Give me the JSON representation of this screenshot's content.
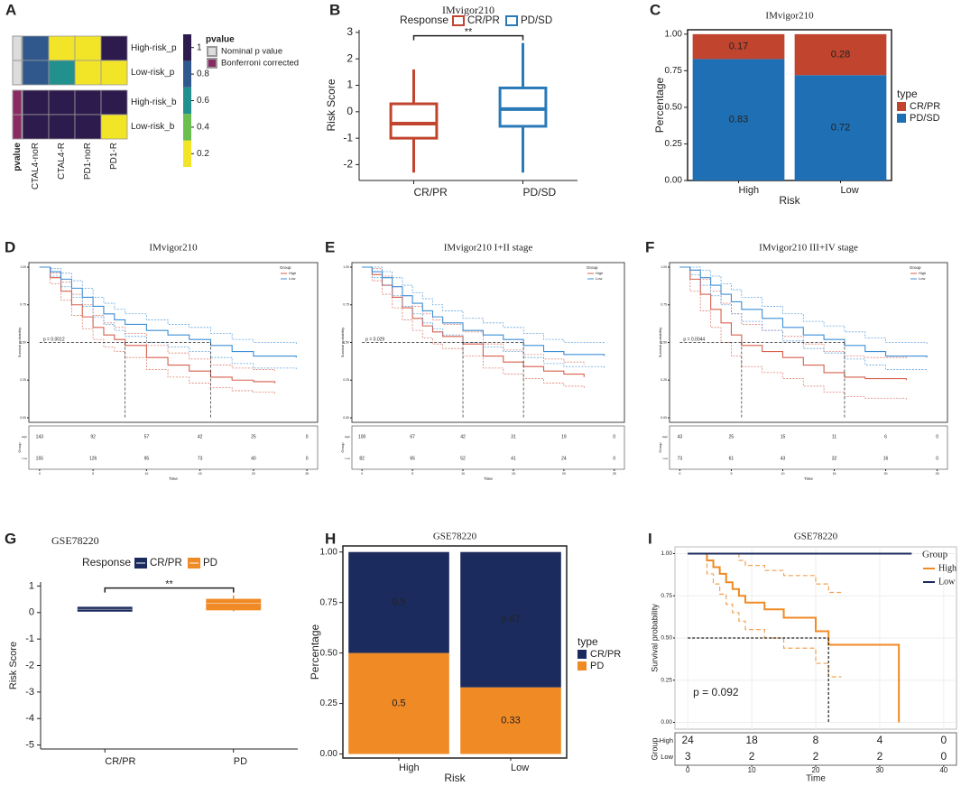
{
  "chart_data": [
    {
      "type": "heatmap",
      "panel_label": "A",
      "rows": [
        "High-risk_p",
        "Low-risk_p",
        "High-risk_b",
        "Low-risk_b"
      ],
      "columns": [
        "CTAL4-noR",
        "CTAL4-R",
        "PD1-noR",
        "PD1-R"
      ],
      "values": [
        [
          0.8,
          0.2,
          0.2,
          1
        ],
        [
          0.8,
          0.6,
          0.2,
          0.2
        ],
        [
          1,
          1,
          1,
          1
        ],
        [
          1,
          1,
          1,
          0.2
        ]
      ],
      "annotation_label": "pvalue",
      "row_annotation_colors": [
        "#dcdcdc",
        "#dcdcdc",
        "#8a2a63",
        "#8a2a63"
      ],
      "colors": [
        "#f2e427",
        "#6cbf4f",
        "#22908c",
        "#31588c",
        "#2e1b4e"
      ],
      "clim": [
        0.1,
        1.1
      ],
      "colorbar_ticks": [
        0.2,
        0.4,
        0.6,
        0.8,
        1
      ],
      "legend_title": "pvalue",
      "legend": [
        {
          "name": "Nominal p value",
          "color": "#dcdcdc"
        },
        {
          "name": "Bonferroni corrected",
          "color": "#8a2a63"
        }
      ]
    },
    {
      "type": "box",
      "panel_label": "B",
      "title": "IMvigor210",
      "legend_title": "Response",
      "ylabel": "Risk Score",
      "categories": [
        "CR/PR",
        "PD/SD"
      ],
      "fill": false,
      "series": [
        {
          "name": "CR/PR",
          "color": "#c0442e",
          "stats": {
            "min": -2.3,
            "q1": -1,
            "median": -0.45,
            "q3": 0.3,
            "max": 1.6
          }
        },
        {
          "name": "PD/SD",
          "color": "#2a7ab8",
          "stats": {
            "min": -2.3,
            "q1": -0.55,
            "median": 0.1,
            "q3": 0.9,
            "max": 2.6
          }
        }
      ],
      "ylim": [
        -2.6,
        3.1
      ],
      "yticks": [
        -2,
        -1,
        0,
        1,
        2,
        3
      ],
      "annotation": "**"
    },
    {
      "type": "stacked_bar",
      "panel_label": "C",
      "title": "IMvigor210",
      "xlabel": "Risk",
      "ylabel": "Percentage",
      "legend_title": "type",
      "categories": [
        "High",
        "Low"
      ],
      "series": [
        {
          "name": "CR/PR",
          "color": "#c0442e",
          "values": [
            0.17,
            0.28
          ]
        },
        {
          "name": "PD/SD",
          "color": "#1f6fb4",
          "values": [
            0.83,
            0.72
          ]
        }
      ],
      "ylim": [
        0,
        1.03
      ],
      "yticks": [
        {
          "value": 0,
          "label": "0.00"
        },
        {
          "value": 0.25,
          "label": "0.25"
        },
        {
          "value": 0.5,
          "label": "0.50"
        },
        {
          "value": 0.75,
          "label": "0.75"
        },
        {
          "value": 1,
          "label": "1.00"
        }
      ]
    },
    {
      "type": "survival",
      "panel_label": "D",
      "title": "IMvigor210",
      "legend_title": "Group",
      "xlabel": "Time",
      "ylabel": "Survival probability",
      "pvalue": "p = 0.0012",
      "xlim": [
        -1,
        26
      ],
      "xticks": [
        0,
        5,
        10,
        15,
        20,
        25
      ],
      "ylim": [
        -0.03,
        1.03
      ],
      "yticks": [
        {
          "value": 0,
          "label": "0.00"
        },
        {
          "value": 0.25,
          "label": "0.25"
        },
        {
          "value": 0.5,
          "label": "0.50"
        },
        {
          "value": 0.75,
          "label": "0.75"
        },
        {
          "value": 1,
          "label": "1.00"
        }
      ],
      "series": [
        {
          "name": "High",
          "color": "#d6604d",
          "x": [
            0,
            1,
            2,
            3,
            4,
            5,
            6,
            7,
            8,
            10,
            12,
            14,
            16,
            18,
            20,
            22
          ],
          "values": [
            1,
            0.93,
            0.84,
            0.75,
            0.67,
            0.6,
            0.55,
            0.52,
            0.48,
            0.4,
            0.35,
            0.31,
            0.27,
            0.25,
            0.24,
            0.23
          ],
          "ci_upper": [
            1,
            0.96,
            0.9,
            0.82,
            0.75,
            0.68,
            0.63,
            0.6,
            0.56,
            0.48,
            0.43,
            0.39,
            0.35,
            0.33,
            0.32,
            0.31
          ],
          "ci_lower": [
            1,
            0.89,
            0.78,
            0.68,
            0.59,
            0.52,
            0.47,
            0.44,
            0.4,
            0.32,
            0.27,
            0.23,
            0.2,
            0.18,
            0.17,
            0.16
          ]
        },
        {
          "name": "Low",
          "color": "#3d8fd6",
          "x": [
            0,
            1,
            2,
            3,
            4,
            5,
            6,
            7,
            8,
            10,
            12,
            14,
            16,
            18,
            20,
            24
          ],
          "values": [
            1,
            0.97,
            0.92,
            0.86,
            0.8,
            0.74,
            0.69,
            0.65,
            0.62,
            0.58,
            0.55,
            0.52,
            0.48,
            0.44,
            0.41,
            0.4
          ],
          "ci_upper": [
            1,
            0.99,
            0.96,
            0.91,
            0.86,
            0.8,
            0.76,
            0.72,
            0.69,
            0.65,
            0.62,
            0.6,
            0.56,
            0.52,
            0.5,
            0.49
          ],
          "ci_lower": [
            1,
            0.94,
            0.87,
            0.8,
            0.74,
            0.67,
            0.62,
            0.58,
            0.54,
            0.5,
            0.47,
            0.44,
            0.4,
            0.36,
            0.33,
            0.32
          ]
        }
      ],
      "risk_table": {
        "label": "Group",
        "rows": [
          {
            "name": "High",
            "values": [
              143,
              92,
              57,
              42,
              25,
              0
            ]
          },
          {
            "name": "Low",
            "values": [
              155,
              126,
              95,
              73,
              40,
              0
            ]
          }
        ]
      }
    },
    {
      "type": "survival",
      "panel_label": "E",
      "title": "IMvigor210   I+II stage",
      "legend_title": "Group",
      "xlabel": "Time",
      "ylabel": "Survival probability",
      "pvalue": "p = 0.029",
      "xlim": [
        -1,
        26
      ],
      "xticks": [
        0,
        5,
        10,
        15,
        20,
        25
      ],
      "ylim": [
        -0.03,
        1.03
      ],
      "yticks": [
        {
          "value": 0,
          "label": "0.00"
        },
        {
          "value": 0.25,
          "label": "0.25"
        },
        {
          "value": 0.5,
          "label": "0.50"
        },
        {
          "value": 0.75,
          "label": "0.75"
        },
        {
          "value": 1,
          "label": "1.00"
        }
      ],
      "series": [
        {
          "name": "High",
          "color": "#d6604d",
          "x": [
            0,
            1,
            2,
            3,
            4,
            5,
            6,
            7,
            8,
            10,
            12,
            14,
            16,
            18,
            20,
            22
          ],
          "values": [
            1,
            0.95,
            0.88,
            0.8,
            0.73,
            0.66,
            0.61,
            0.57,
            0.54,
            0.49,
            0.41,
            0.37,
            0.34,
            0.31,
            0.29,
            0.27
          ],
          "ci_upper": [
            1,
            0.99,
            0.94,
            0.87,
            0.81,
            0.74,
            0.69,
            0.65,
            0.62,
            0.57,
            0.49,
            0.45,
            0.42,
            0.39,
            0.37,
            0.35
          ],
          "ci_lower": [
            1,
            0.91,
            0.82,
            0.73,
            0.65,
            0.58,
            0.53,
            0.49,
            0.46,
            0.41,
            0.33,
            0.29,
            0.26,
            0.23,
            0.21,
            0.19
          ]
        },
        {
          "name": "Low",
          "color": "#3d8fd6",
          "x": [
            0,
            1,
            2,
            3,
            4,
            5,
            6,
            7,
            8,
            10,
            12,
            14,
            16,
            18,
            20,
            24
          ],
          "values": [
            1,
            0.97,
            0.93,
            0.87,
            0.81,
            0.76,
            0.71,
            0.67,
            0.63,
            0.58,
            0.55,
            0.52,
            0.48,
            0.44,
            0.42,
            0.41
          ],
          "ci_upper": [
            1,
            1,
            0.97,
            0.93,
            0.88,
            0.83,
            0.79,
            0.75,
            0.71,
            0.66,
            0.63,
            0.6,
            0.56,
            0.52,
            0.5,
            0.49
          ],
          "ci_lower": [
            1,
            0.93,
            0.88,
            0.81,
            0.74,
            0.69,
            0.63,
            0.59,
            0.55,
            0.5,
            0.47,
            0.44,
            0.4,
            0.36,
            0.34,
            0.33
          ]
        }
      ],
      "risk_table": {
        "label": "Group",
        "rows": [
          {
            "name": "High",
            "values": [
              100,
              67,
              42,
              31,
              19,
              0
            ]
          },
          {
            "name": "Low",
            "values": [
              82,
              65,
              52,
              41,
              24,
              0
            ]
          }
        ]
      }
    },
    {
      "type": "survival",
      "panel_label": "F",
      "title": "IMvigor210   III+IV stage",
      "legend_title": "Group",
      "xlabel": "Time",
      "ylabel": "Survival probability",
      "pvalue": "p = 0.0044",
      "xlim": [
        -1,
        26
      ],
      "xticks": [
        0,
        5,
        10,
        15,
        20,
        25
      ],
      "ylim": [
        -0.03,
        1.03
      ],
      "yticks": [
        {
          "value": 0,
          "label": "0.00"
        },
        {
          "value": 0.25,
          "label": "0.25"
        },
        {
          "value": 0.5,
          "label": "0.50"
        },
        {
          "value": 0.75,
          "label": "0.75"
        },
        {
          "value": 1,
          "label": "1.00"
        }
      ],
      "series": [
        {
          "name": "High",
          "color": "#d6604d",
          "x": [
            0,
            1,
            2,
            3,
            4,
            5,
            6,
            8,
            10,
            12,
            14,
            16,
            18,
            20,
            22
          ],
          "values": [
            1,
            0.92,
            0.82,
            0.72,
            0.63,
            0.55,
            0.48,
            0.44,
            0.4,
            0.35,
            0.3,
            0.27,
            0.26,
            0.26,
            0.25
          ],
          "ci_upper": [
            1,
            0.98,
            0.92,
            0.84,
            0.76,
            0.69,
            0.62,
            0.58,
            0.54,
            0.49,
            0.44,
            0.41,
            0.4,
            0.4,
            0.39
          ],
          "ci_lower": [
            1,
            0.84,
            0.71,
            0.6,
            0.5,
            0.41,
            0.34,
            0.3,
            0.26,
            0.21,
            0.17,
            0.14,
            0.13,
            0.13,
            0.12
          ]
        },
        {
          "name": "Low",
          "color": "#3d8fd6",
          "x": [
            0,
            1,
            2,
            3,
            4,
            5,
            6,
            8,
            10,
            12,
            14,
            16,
            18,
            20,
            24
          ],
          "values": [
            1,
            0.98,
            0.93,
            0.88,
            0.82,
            0.77,
            0.72,
            0.66,
            0.6,
            0.55,
            0.52,
            0.48,
            0.44,
            0.41,
            0.4
          ],
          "ci_upper": [
            1,
            1,
            0.98,
            0.94,
            0.89,
            0.85,
            0.8,
            0.74,
            0.69,
            0.64,
            0.61,
            0.57,
            0.53,
            0.5,
            0.49
          ],
          "ci_lower": [
            1,
            0.95,
            0.88,
            0.81,
            0.75,
            0.69,
            0.64,
            0.58,
            0.51,
            0.46,
            0.43,
            0.39,
            0.35,
            0.32,
            0.31
          ]
        }
      ],
      "risk_table": {
        "label": "Group",
        "rows": [
          {
            "name": "High",
            "values": [
              43,
              25,
              15,
              11,
              6,
              0
            ]
          },
          {
            "name": "Low",
            "values": [
              73,
              61,
              43,
              32,
              16,
              0
            ]
          }
        ]
      }
    },
    {
      "type": "box",
      "panel_label": "G",
      "title": "GSE78220",
      "legend_title": "Response",
      "ylabel": "Risk Score",
      "categories": [
        "CR/PR",
        "PD"
      ],
      "fill": true,
      "series": [
        {
          "name": "CR/PR",
          "color": "#1c2b5e",
          "stats": {
            "min": 0.05,
            "q1": 0.05,
            "median": 0.12,
            "q3": 0.2,
            "max": 0.2
          }
        },
        {
          "name": "PD",
          "color": "#f08a24",
          "stats": {
            "min": 0.05,
            "q1": 0.1,
            "median": 0.35,
            "q3": 0.5,
            "max": 0.65
          }
        }
      ],
      "ylim": [
        -5.15,
        1.15
      ],
      "yticks": [
        -5,
        -4,
        -3,
        -2,
        -1,
        0,
        1
      ],
      "annotation": "**"
    },
    {
      "type": "stacked_bar",
      "panel_label": "H",
      "title": "GSE78220",
      "xlabel": "Risk",
      "ylabel": "Percentage",
      "legend_title": "type",
      "categories": [
        "High",
        "Low"
      ],
      "series": [
        {
          "name": "CR/PR",
          "color": "#1c2b5e",
          "values": [
            0.5,
            0.67
          ]
        },
        {
          "name": "PD",
          "color": "#f08a24",
          "values": [
            0.5,
            0.33
          ]
        }
      ],
      "ylim": [
        -0.02,
        1.03
      ],
      "yticks": [
        {
          "value": 0,
          "label": "0.00"
        },
        {
          "value": 0.25,
          "label": "0.25"
        },
        {
          "value": 0.5,
          "label": "0.50"
        },
        {
          "value": 0.75,
          "label": "0.75"
        },
        {
          "value": 1,
          "label": "1.00"
        }
      ]
    },
    {
      "type": "survival",
      "panel_label": "I",
      "title": "GSE78220",
      "legend_title": "Group",
      "xlabel": "Time",
      "ylabel": "Survival probability",
      "pvalue": "p = 0.092",
      "xlim": [
        -2,
        42
      ],
      "xticks": [
        0,
        10,
        20,
        30,
        40
      ],
      "ylim": [
        -0.04,
        1.04
      ],
      "yticks": [
        {
          "value": 0,
          "label": "0.00"
        },
        {
          "value": 0.25,
          "label": "0.25"
        },
        {
          "value": 0.5,
          "label": "0.50"
        },
        {
          "value": 0.75,
          "label": "0.75"
        },
        {
          "value": 1,
          "label": "1.00"
        }
      ],
      "series": [
        {
          "name": "High",
          "color": "#f08a24",
          "x": [
            0,
            2,
            3,
            4,
            5,
            6,
            7,
            8,
            9,
            10,
            12,
            13,
            15,
            17,
            20,
            22,
            24,
            33
          ],
          "values": [
            1,
            1,
            0.96,
            0.92,
            0.88,
            0.83,
            0.79,
            0.75,
            0.71,
            0.71,
            0.67,
            0.67,
            0.62,
            0.62,
            0.54,
            0.46,
            0.46,
            0
          ],
          "ci_upper": [
            1,
            1,
            1,
            1,
            1,
            1,
            1,
            0.96,
            0.93,
            0.93,
            0.9,
            0.9,
            0.87,
            0.87,
            0.82,
            0.77,
            0.77,
            null
          ],
          "ci_lower": [
            1,
            1,
            0.88,
            0.82,
            0.76,
            0.7,
            0.65,
            0.6,
            0.55,
            0.55,
            0.5,
            0.5,
            0.44,
            0.44,
            0.35,
            0.27,
            0.27,
            null
          ]
        },
        {
          "name": "Low",
          "color": "#1c2b5e",
          "x": [
            0,
            35
          ],
          "values": [
            1,
            1
          ]
        }
      ],
      "risk_table": {
        "label": "Group",
        "rows": [
          {
            "name": "High",
            "values": [
              24,
              18,
              8,
              4,
              0
            ]
          },
          {
            "name": "Low",
            "values": [
              3,
              2,
              2,
              2,
              0
            ]
          }
        ]
      }
    }
  ]
}
